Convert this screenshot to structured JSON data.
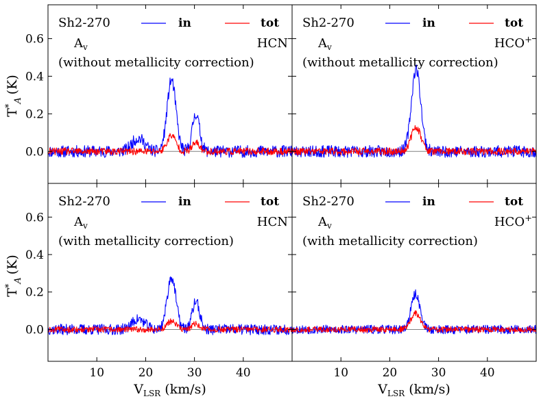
{
  "figure": {
    "ylabel_main": "T",
    "ylabel_sup": "*",
    "ylabel_sub": "A",
    "ylabel_unit": "(K)",
    "xlabel_main": "V",
    "xlabel_sub": "LSR",
    "xlabel_unit": "(km/s)"
  },
  "legend": {
    "in_label": "in",
    "tot_label": "tot",
    "in_color": "#0000ff",
    "tot_color": "#ff0000",
    "baseline_color": "#808080"
  },
  "panels": [
    {
      "source": "Sh2-270",
      "av_main": "A",
      "av_sub": "v",
      "molecule": "HCN",
      "molecule_sup": "",
      "note": "(without metallicity correction)"
    },
    {
      "source": "Sh2-270",
      "av_main": "A",
      "av_sub": "v",
      "molecule": "HCO",
      "molecule_sup": "+",
      "note": "(without metallicity correction)"
    },
    {
      "source": "Sh2-270",
      "av_main": "A",
      "av_sub": "v",
      "molecule": "HCN",
      "molecule_sup": "",
      "note": "(with metallicity correction)"
    },
    {
      "source": "Sh2-270",
      "av_main": "A",
      "av_sub": "v",
      "molecule": "HCO",
      "molecule_sup": "+",
      "note": "(with metallicity correction)"
    }
  ],
  "chart_data": [
    {
      "type": "line",
      "title": "Sh2-270 HCN (without metallicity correction)",
      "xlabel": "V_LSR (km/s)",
      "ylabel": "T*_A (K)",
      "xlim": [
        0,
        50
      ],
      "ylim": [
        -0.17,
        0.78
      ],
      "xticks": [
        10,
        20,
        30,
        40
      ],
      "xtick_labels": [
        "10",
        "20",
        "30",
        "40"
      ],
      "yticks": [
        0.0,
        0.2,
        0.4,
        0.6
      ],
      "ytick_labels": [
        "0.0",
        "0.2",
        "0.4",
        "0.6"
      ],
      "noise_in": 0.02,
      "noise_tot": 0.012,
      "seed": 11,
      "series": [
        {
          "name": "in",
          "components": [
            [
              25.3,
              0.38,
              0.9
            ],
            [
              30.3,
              0.2,
              0.75
            ],
            [
              18.5,
              0.07,
              1.3
            ]
          ]
        },
        {
          "name": "tot",
          "components": [
            [
              25.3,
              0.085,
              0.9
            ],
            [
              30.3,
              0.045,
              0.75
            ]
          ]
        }
      ]
    },
    {
      "type": "line",
      "title": "Sh2-270 HCO+ (without metallicity correction)",
      "xlabel": "V_LSR (km/s)",
      "ylabel": "T*_A (K)",
      "xlim": [
        0,
        50
      ],
      "ylim": [
        -0.17,
        0.78
      ],
      "xticks": [
        10,
        20,
        30,
        40
      ],
      "xtick_labels": [
        "10",
        "20",
        "30",
        "40"
      ],
      "yticks": [
        0.0,
        0.2,
        0.4,
        0.6
      ],
      "ytick_labels": [
        "0.0",
        "0.2",
        "0.4",
        "0.6"
      ],
      "noise_in": 0.02,
      "noise_tot": 0.012,
      "seed": 23,
      "series": [
        {
          "name": "in",
          "components": [
            [
              25.4,
              0.44,
              0.95
            ]
          ]
        },
        {
          "name": "tot",
          "components": [
            [
              25.4,
              0.13,
              1.0
            ]
          ]
        }
      ]
    },
    {
      "type": "line",
      "title": "Sh2-270 HCN (with metallicity correction)",
      "xlabel": "V_LSR (km/s)",
      "ylabel": "T*_A (K)",
      "xlim": [
        0,
        50
      ],
      "ylim": [
        -0.17,
        0.78
      ],
      "xticks": [
        10,
        20,
        30,
        40
      ],
      "xtick_labels": [
        "10",
        "20",
        "30",
        "40"
      ],
      "yticks": [
        0.0,
        0.2,
        0.4,
        0.6
      ],
      "ytick_labels": [
        "0.0",
        "0.2",
        "0.4",
        "0.6"
      ],
      "noise_in": 0.018,
      "noise_tot": 0.01,
      "seed": 37,
      "series": [
        {
          "name": "in",
          "components": [
            [
              25.3,
              0.28,
              0.9
            ],
            [
              30.3,
              0.15,
              0.75
            ],
            [
              18.5,
              0.055,
              1.3
            ]
          ]
        },
        {
          "name": "tot",
          "components": [
            [
              25.3,
              0.045,
              0.9
            ],
            [
              30.3,
              0.03,
              0.75
            ]
          ]
        }
      ]
    },
    {
      "type": "line",
      "title": "Sh2-270 HCO+ (with metallicity correction)",
      "xlabel": "V_LSR (km/s)",
      "ylabel": "T*_A (K)",
      "xlim": [
        0,
        50
      ],
      "ylim": [
        -0.17,
        0.78
      ],
      "xticks": [
        10,
        20,
        30,
        40
      ],
      "xtick_labels": [
        "10",
        "20",
        "30",
        "40"
      ],
      "yticks": [
        0.0,
        0.2,
        0.4,
        0.6
      ],
      "ytick_labels": [
        "0.0",
        "0.2",
        "0.4",
        "0.6"
      ],
      "noise_in": 0.015,
      "noise_tot": 0.01,
      "seed": 53,
      "series": [
        {
          "name": "in",
          "components": [
            [
              25.3,
              0.19,
              0.9
            ]
          ]
        },
        {
          "name": "tot",
          "components": [
            [
              25.3,
              0.085,
              1.0
            ]
          ]
        }
      ]
    }
  ]
}
